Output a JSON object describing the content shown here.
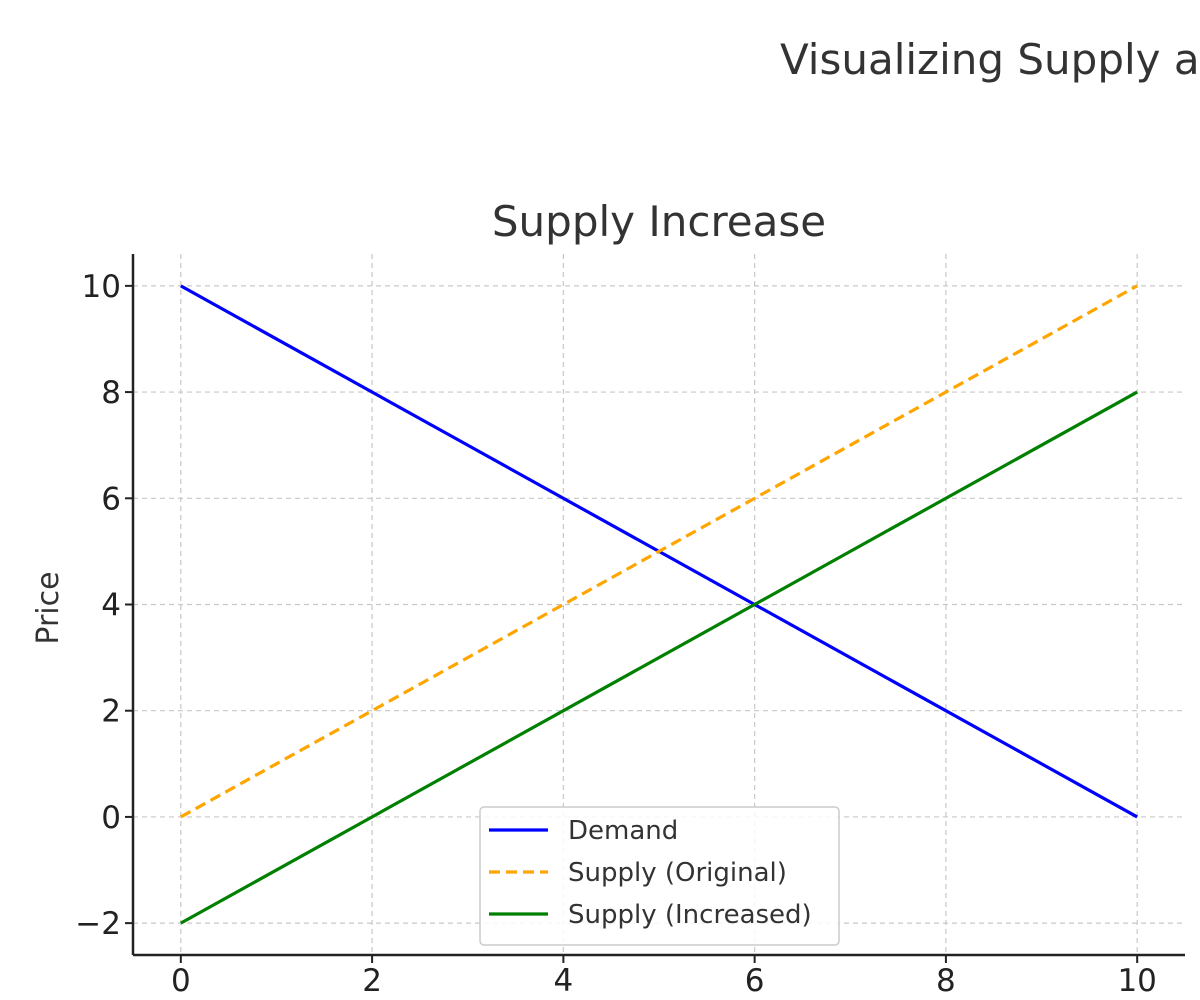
{
  "figure_title": "Visualizing Supply a",
  "chart_data": {
    "type": "line",
    "title": "Supply Increase",
    "xlabel": "",
    "ylabel": "Price",
    "xlim": [
      -0.5,
      10.5
    ],
    "ylim": [
      -2.6,
      10.6
    ],
    "xticks": [
      0,
      2,
      4,
      6,
      8,
      10
    ],
    "yticks": [
      -2,
      0,
      2,
      4,
      6,
      8,
      10
    ],
    "xtick_labels": [
      "0",
      "2",
      "4",
      "6",
      "8",
      "10"
    ],
    "ytick_labels": [
      "−2",
      "0",
      "2",
      "4",
      "6",
      "8",
      "10"
    ],
    "grid": true,
    "legend_position": "lower center",
    "series": [
      {
        "name": "Demand",
        "x": [
          0,
          10
        ],
        "y": [
          10,
          0
        ],
        "color": "#0000ff",
        "style": "solid"
      },
      {
        "name": "Supply (Original)",
        "x": [
          0,
          10
        ],
        "y": [
          0,
          10
        ],
        "color": "#ffa500",
        "style": "dashed"
      },
      {
        "name": "Supply (Increased)",
        "x": [
          0,
          10
        ],
        "y": [
          -2,
          8
        ],
        "color": "#008000",
        "style": "solid"
      }
    ]
  }
}
